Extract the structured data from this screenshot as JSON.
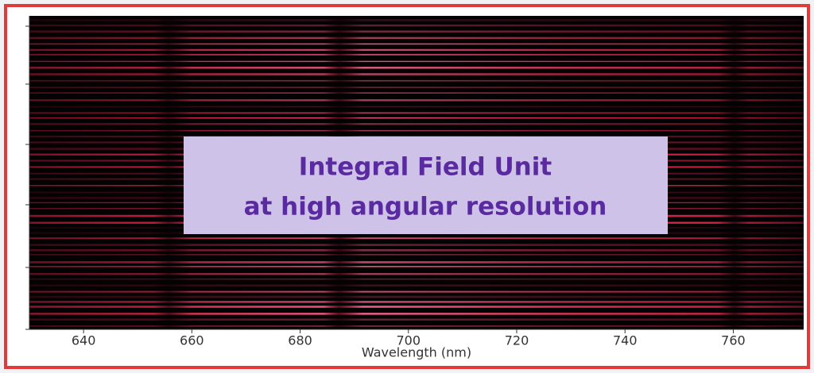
{
  "chart_data": {
    "type": "spectrum",
    "xlabel": "Wavelength (nm)",
    "xlim": [
      630,
      773
    ],
    "xticks": [
      640,
      660,
      680,
      700,
      720,
      740,
      760
    ],
    "annotation": [
      "Integral Field Unit",
      "at high angular resolution"
    ],
    "color": "#e8204a"
  }
}
